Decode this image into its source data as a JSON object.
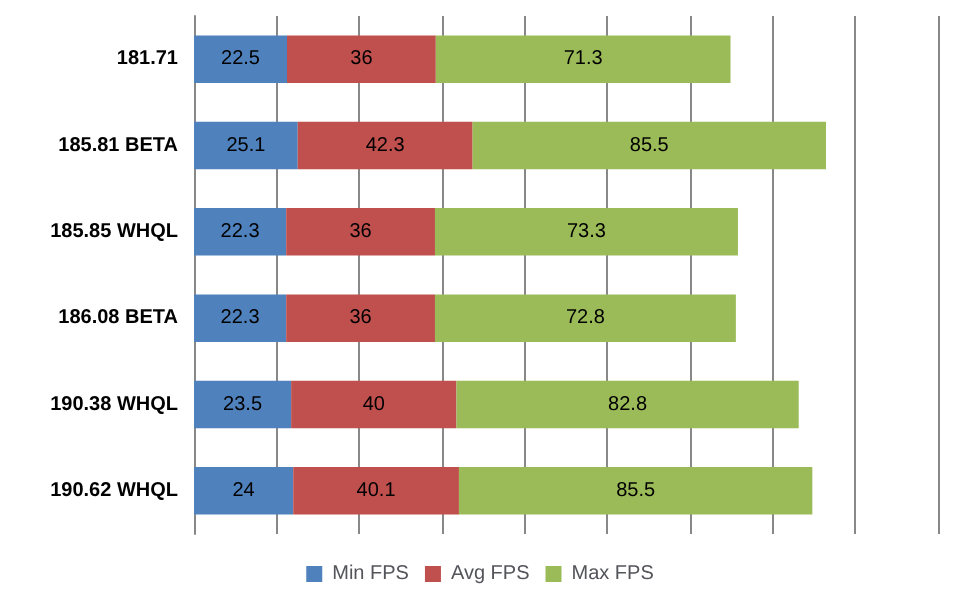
{
  "chart_data": {
    "type": "bar",
    "orientation": "horizontal",
    "stacked": true,
    "categories": [
      "181.71",
      "185.81 BETA",
      "185.85 WHQL",
      "186.08 BETA",
      "190.38 WHQL",
      "190.62 WHQL"
    ],
    "series": [
      {
        "name": "Min FPS",
        "color": "#4f81bd",
        "values": [
          22.5,
          25.1,
          22.3,
          22.3,
          23.5,
          24
        ]
      },
      {
        "name": "Avg FPS",
        "color": "#c0504d",
        "values": [
          36,
          42.3,
          36,
          36,
          40,
          40.1
        ]
      },
      {
        "name": "Max FPS",
        "color": "#9bbb59",
        "values": [
          71.3,
          85.5,
          73.3,
          72.8,
          82.8,
          85.5
        ]
      }
    ],
    "xlim": [
      0,
      180
    ],
    "xticks": [
      {
        "value": 0,
        "label": null
      },
      {
        "value": 20,
        "label": null
      },
      {
        "value": 40,
        "label": null
      },
      {
        "value": 60,
        "label": null
      },
      {
        "value": 80,
        "label": null
      },
      {
        "value": 100,
        "label": null
      },
      {
        "value": 120,
        "label": null
      },
      {
        "value": 140,
        "label": null
      },
      {
        "value": 160,
        "label": null
      },
      {
        "value": 180,
        "label": null
      }
    ],
    "grid": "x",
    "legend": "bottom",
    "data_labels": true,
    "tick_labels": "y"
  }
}
